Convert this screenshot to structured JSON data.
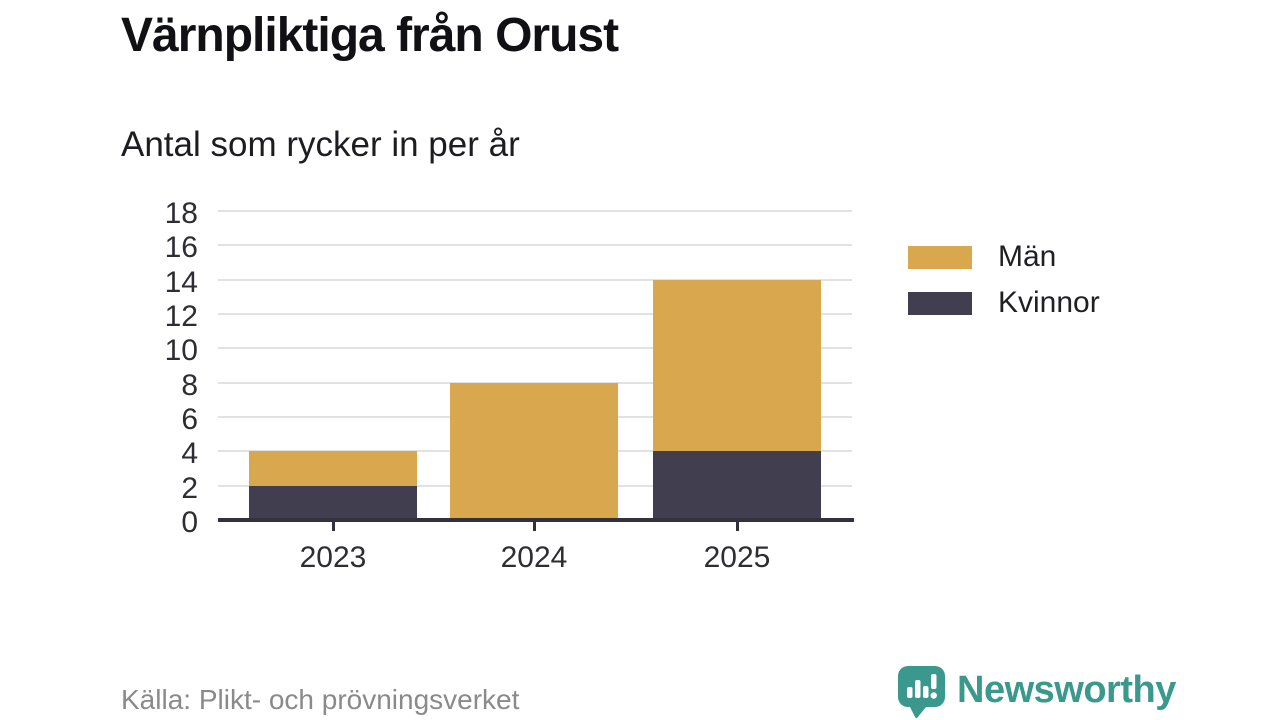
{
  "header": {
    "title": "Värnpliktiga från Orust",
    "subtitle": "Antal som rycker in per år"
  },
  "footer": {
    "source": "Källa: Plikt- och prövningsverket",
    "brand": "Newsworthy"
  },
  "icons": {
    "brand_logo": "bar-chart-speech-bubble-icon"
  },
  "colors": {
    "men": "#d8a74e",
    "women": "#413f4f",
    "grid": "#e2e2e2",
    "axis": "#33323c",
    "tick_label": "#2d2d33",
    "muted_text": "#8a8a8a",
    "brand_teal": "#3a998c",
    "background": "#ffffff"
  },
  "chart_data": {
    "type": "bar",
    "stacked": true,
    "title": "Värnpliktiga från Orust",
    "subtitle": "Antal som rycker in per år",
    "categories": [
      "2023",
      "2024",
      "2025"
    ],
    "series": [
      {
        "name": "Män",
        "color": "#d8a74e",
        "values": [
          2,
          8,
          10
        ]
      },
      {
        "name": "Kvinnor",
        "color": "#413f4f",
        "values": [
          2,
          0,
          4
        ]
      }
    ],
    "stack_order_bottom_to_top": [
      "Kvinnor",
      "Män"
    ],
    "stack_totals": [
      4,
      8,
      14
    ],
    "ylim": [
      0,
      18
    ],
    "yticks": [
      0,
      2,
      4,
      6,
      8,
      10,
      12,
      14,
      16,
      18
    ],
    "grid": true,
    "legend_position": "right",
    "source": "Källa: Plikt- och prövningsverket"
  }
}
